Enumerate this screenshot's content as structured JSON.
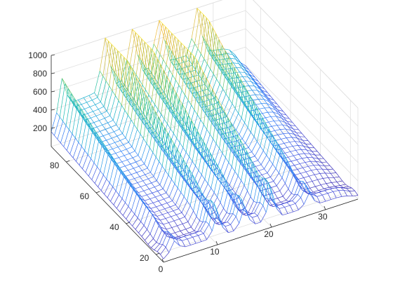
{
  "chart_data": {
    "type": "mesh",
    "x_ticks": [
      0,
      10,
      20,
      30
    ],
    "y_ticks": [
      20,
      40,
      60,
      80
    ],
    "z_ticks": [
      200,
      400,
      600,
      800,
      1000
    ],
    "xlim": [
      0,
      36
    ],
    "ylim": [
      15,
      90
    ],
    "zlim": [
      0,
      1000
    ],
    "grid": true,
    "colormap": "parula",
    "colormap_stops": [
      "#3e26a8",
      "#4450dc",
      "#2d7ff8",
      "#1ea8db",
      "#17bbb3",
      "#4bc97f",
      "#a8c547",
      "#f0ba3c",
      "#f9e32a"
    ],
    "surface": {
      "description_rows": "y",
      "ridges_x": [
        2,
        10,
        15,
        20,
        27
      ],
      "peaks": [
        {
          "x": 2,
          "y": 20,
          "z": 260
        },
        {
          "x": 10,
          "y": 20,
          "z": 420
        },
        {
          "x": 15,
          "y": 20,
          "z": 380
        },
        {
          "x": 20,
          "y": 20,
          "z": 460
        },
        {
          "x": 27,
          "y": 20,
          "z": 300
        },
        {
          "x": 2,
          "y": 85,
          "z": 480
        },
        {
          "x": 10,
          "y": 85,
          "z": 900
        },
        {
          "x": 15,
          "y": 85,
          "z": 860
        },
        {
          "x": 20,
          "y": 85,
          "z": 1000
        },
        {
          "x": 27,
          "y": 85,
          "z": 760
        }
      ]
    }
  }
}
